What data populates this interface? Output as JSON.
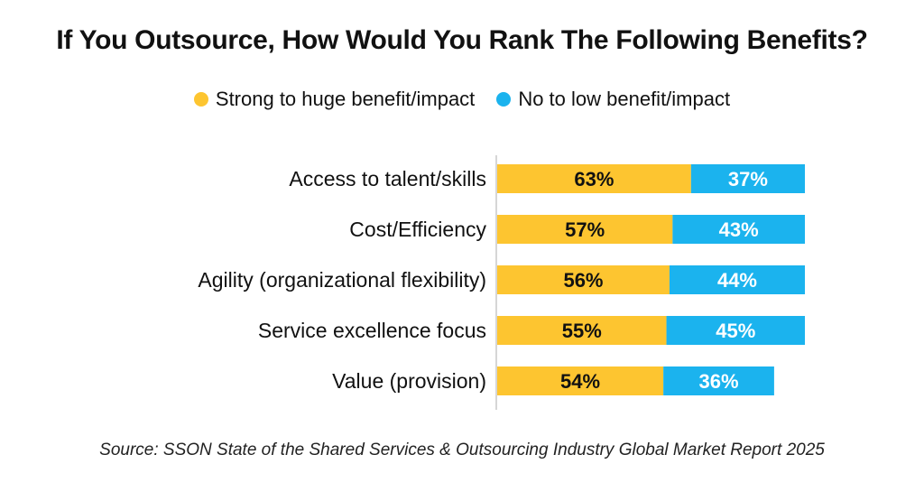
{
  "title": "If You Outsource, How Would You Rank The Following Benefits?",
  "source": "Source: SSON State of the Shared Services & Outsourcing Industry Global Market Report 2025",
  "colors": {
    "strong": "#FDC530",
    "low": "#1BB3EE"
  },
  "chart_data": {
    "type": "bar",
    "orientation": "horizontal",
    "stacked": true,
    "categories": [
      "Access to talent/skills",
      "Cost/Efficiency",
      "Agility (organizational flexibility)",
      "Service excellence focus",
      "Value (provision)"
    ],
    "series": [
      {
        "name": "Strong to huge benefit/impact",
        "values": [
          63,
          57,
          56,
          55,
          54
        ],
        "labels": [
          "63%",
          "57%",
          "56%",
          "55%",
          "54%"
        ]
      },
      {
        "name": "No to low benefit/impact",
        "values": [
          37,
          43,
          44,
          45,
          36
        ],
        "labels": [
          "37%",
          "43%",
          "44%",
          "45%",
          "36%"
        ]
      }
    ],
    "legend": "top",
    "grid": false,
    "xlim": [
      0,
      100
    ]
  }
}
